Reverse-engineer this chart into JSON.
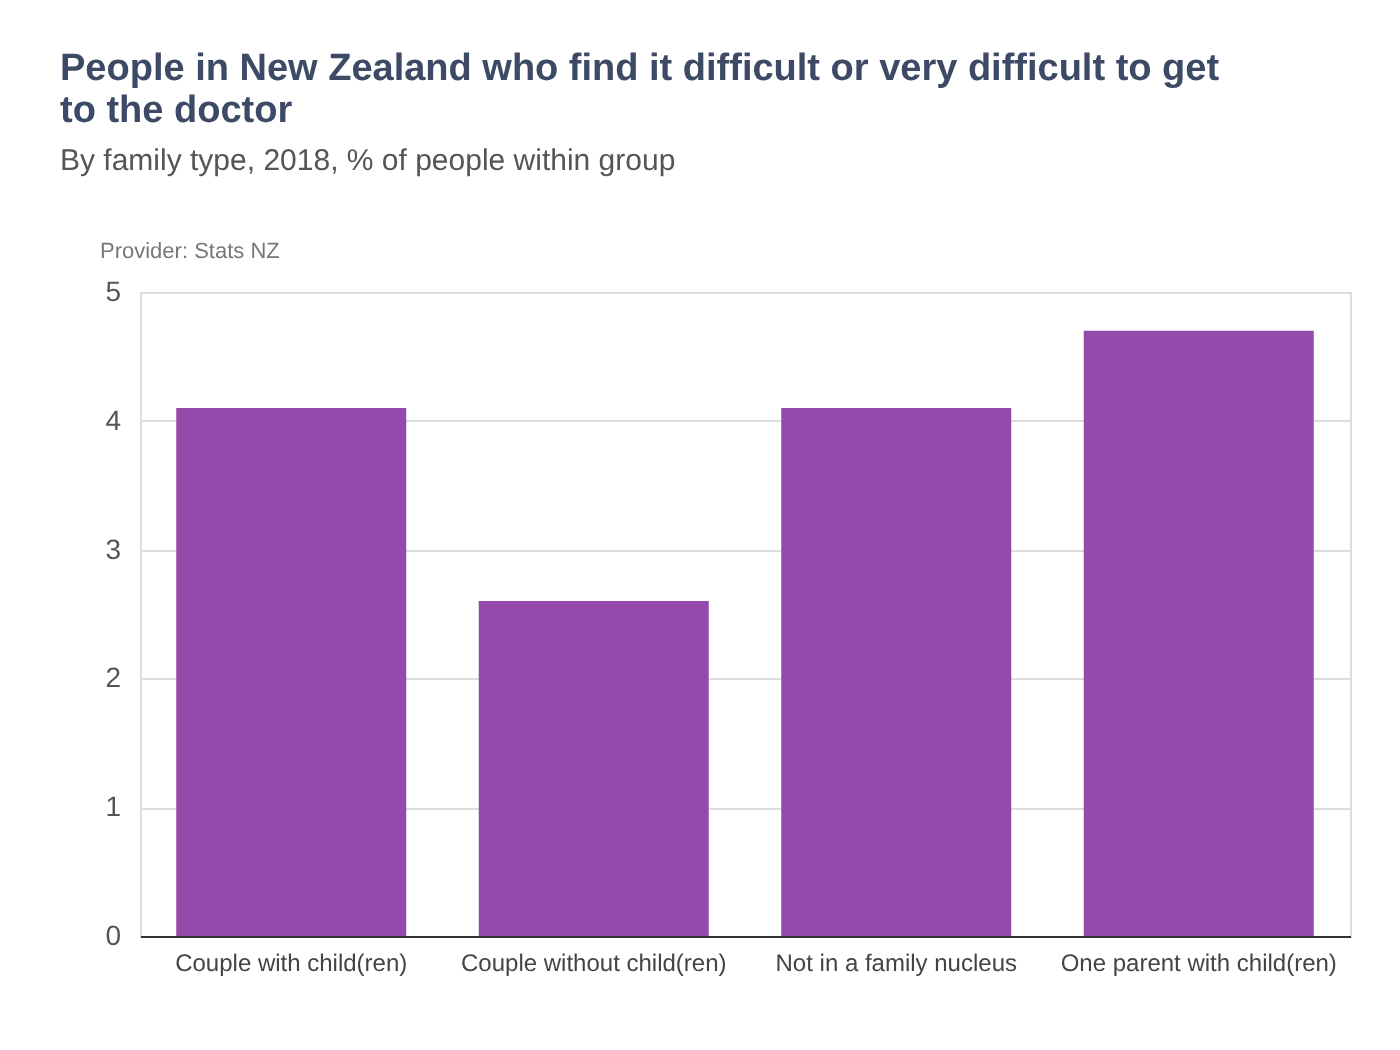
{
  "chart_data": {
    "type": "bar",
    "title": "People in New Zealand who find it difficult or very difficult to get to the doctor",
    "subtitle": "By family type, 2018, % of people within group",
    "annotations": [
      "Provider: Stats NZ"
    ],
    "categories": [
      "Couple with child(ren)",
      "Couple without child(ren)",
      "Not in a family nucleus",
      "One parent with child(ren)"
    ],
    "values": [
      4.1,
      2.6,
      4.1,
      4.7
    ],
    "color": "#944aab",
    "ylim": [
      0,
      5
    ],
    "yticks": [
      0,
      1,
      2,
      3,
      4,
      5
    ],
    "grid": "y"
  }
}
